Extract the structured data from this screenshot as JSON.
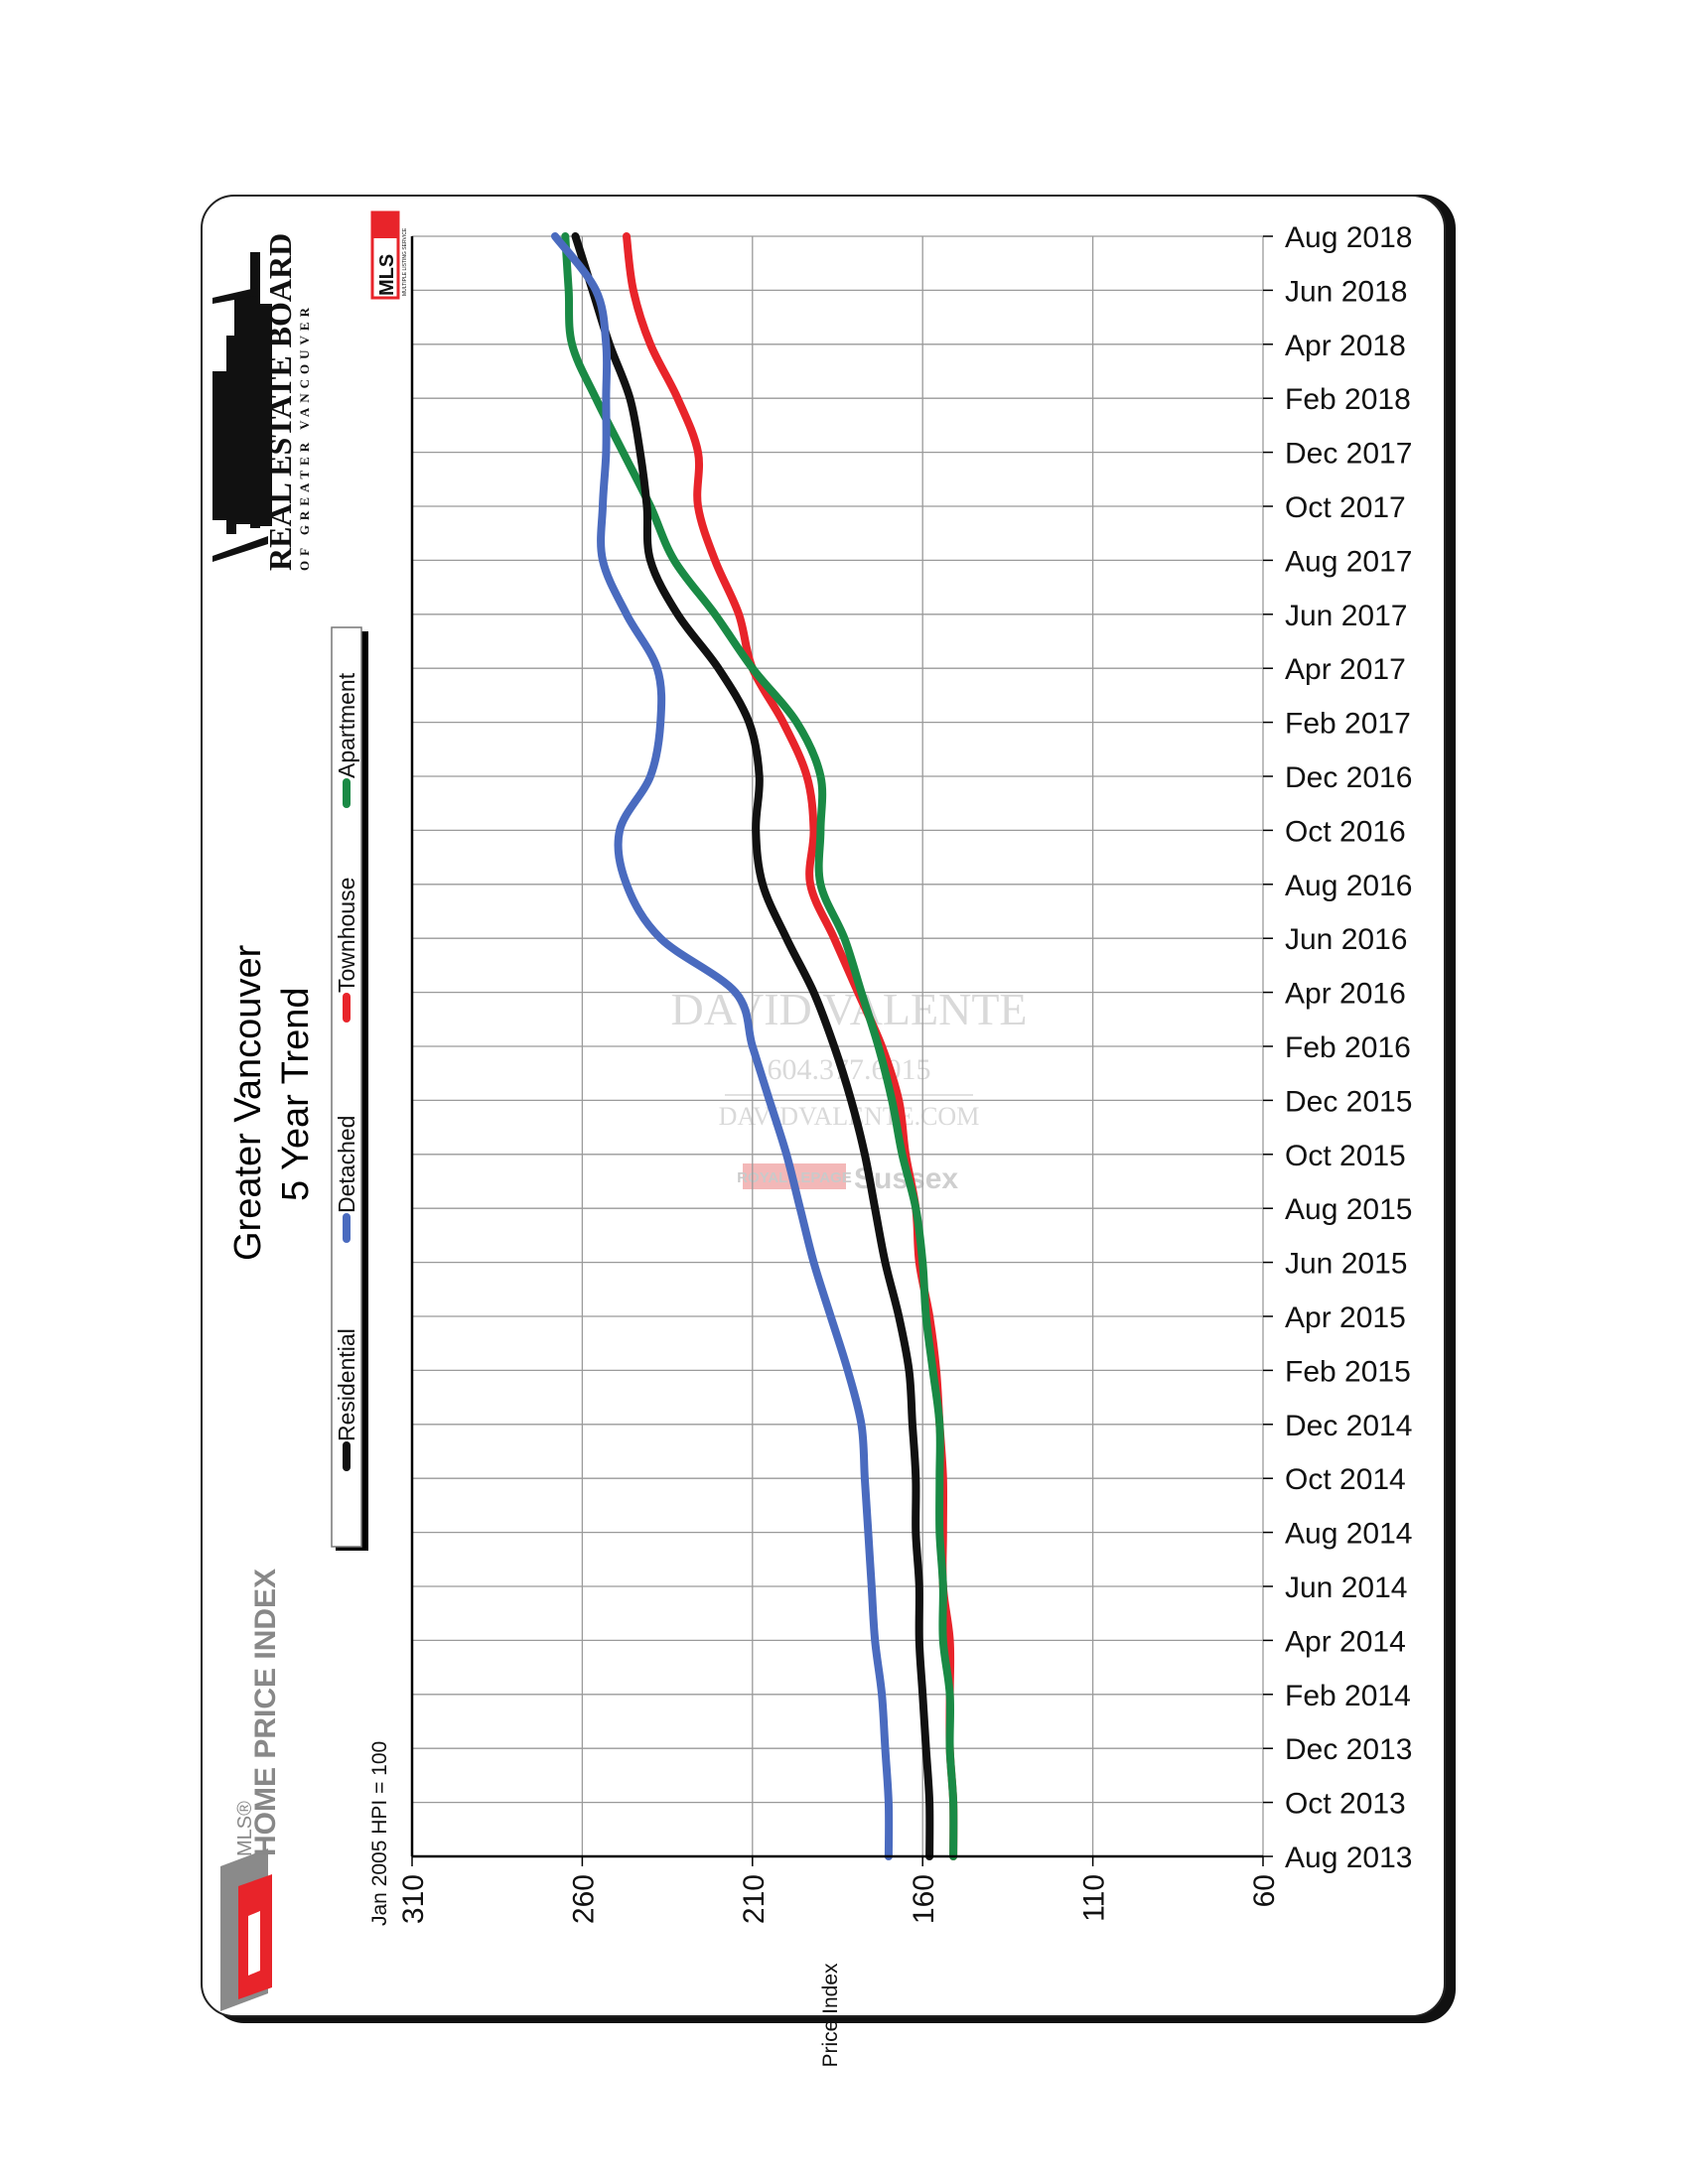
{
  "chart_data": {
    "type": "line",
    "title": "Greater Vancouver",
    "subtitle": "5 Year Trend",
    "base_note": "Jan 2005 HPI = 100",
    "axis_label": "Price Index",
    "value_axis_ticks": [
      310,
      260,
      210,
      160,
      110,
      60
    ],
    "value_range": [
      60,
      310
    ],
    "time_labels": [
      "Aug 2013",
      "Oct 2013",
      "Dec 2013",
      "Feb 2014",
      "Apr 2014",
      "Jun 2014",
      "Aug 2014",
      "Oct 2014",
      "Dec 2014",
      "Feb 2015",
      "Apr 2015",
      "Jun 2015",
      "Aug 2015",
      "Oct 2015",
      "Dec 2015",
      "Feb 2016",
      "Apr 2016",
      "Jun 2016",
      "Aug 2016",
      "Oct 2016",
      "Dec 2016",
      "Feb 2017",
      "Apr 2017",
      "Jun 2017",
      "Aug 2017",
      "Oct 2017",
      "Dec 2017",
      "Feb 2018",
      "Apr 2018",
      "Jun 2018",
      "Aug 2018"
    ],
    "series": [
      {
        "name": "Residential",
        "color": "#111111",
        "values": [
          158,
          158,
          159,
          160,
          161,
          161,
          162,
          162,
          163,
          164,
          167,
          171,
          174,
          177,
          181,
          186,
          192,
          200,
          207,
          209,
          208,
          211,
          220,
          232,
          240,
          241,
          243,
          246,
          252,
          257,
          262
        ]
      },
      {
        "name": "Detached",
        "color": "#4a6bbf",
        "values": [
          170,
          170,
          171,
          172,
          174,
          175,
          176,
          177,
          178,
          182,
          187,
          192,
          196,
          200,
          205,
          210,
          215,
          237,
          247,
          249,
          240,
          237,
          238,
          247,
          254,
          254,
          253,
          253,
          253,
          256,
          268
        ]
      },
      {
        "name": "Townhouse",
        "color": "#e8242a",
        "values": [
          151,
          151,
          152,
          152,
          152,
          154,
          154,
          154,
          155,
          156,
          158,
          161,
          162,
          165,
          167,
          172,
          179,
          186,
          193,
          192,
          194,
          201,
          210,
          214,
          221,
          226,
          226,
          232,
          240,
          245,
          247
        ]
      },
      {
        "name": "Apartment",
        "color": "#1a8a45",
        "values": [
          151,
          151,
          152,
          152,
          154,
          154,
          155,
          155,
          155,
          157,
          159,
          160,
          162,
          166,
          169,
          173,
          178,
          183,
          190,
          190,
          190,
          197,
          210,
          221,
          233,
          240,
          248,
          256,
          263,
          264,
          265
        ]
      }
    ],
    "legend": [
      "Residential",
      "Detached",
      "Townhouse",
      "Apartment"
    ]
  },
  "branding": {
    "board_name": "REAL ESTATE BOARD",
    "board_sub": "OF GREATER VANCOUVER",
    "hpi_brand_mls": "MLS®",
    "hpi_brand_name": "HOME PRICE INDEX",
    "mls_logo_text": "MLS",
    "mls_logo_sub": "MULTIPLE LISTING SERVICE"
  },
  "watermark": {
    "name": "DAVID VALENTE",
    "phone": "604.377.6015",
    "site": "DAVIDVALENTE.COM",
    "brokerage": "ROYAL LEPAGE",
    "office": "Sussex"
  },
  "colors": {
    "grid": "#9a9a9a",
    "frame": "#000000"
  }
}
